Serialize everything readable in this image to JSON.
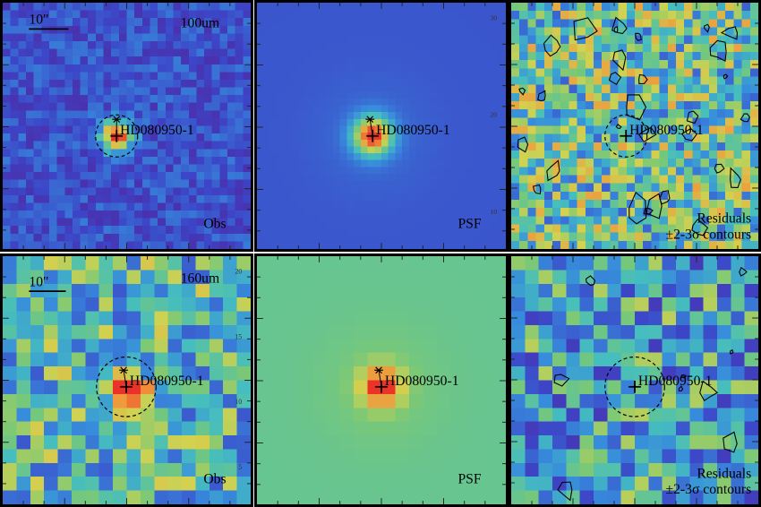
{
  "figure": {
    "panels": [
      {
        "id": "r1c1",
        "kind": "obs",
        "band": "100um",
        "source": "HD080950-1",
        "corner_label": "Obs",
        "scale_bar": "10\"",
        "ticks": []
      },
      {
        "id": "r1c2",
        "kind": "psf",
        "band": "",
        "source": "HD080950-1",
        "corner_label": "PSF",
        "scale_bar": "",
        "ticks": [
          "30",
          "20",
          "10"
        ]
      },
      {
        "id": "r1c3",
        "kind": "res",
        "band": "",
        "source": "HD080950-1",
        "corner_label": "Residuals",
        "corner_label2": "±2-3σ contours",
        "scale_bar": "",
        "ticks": []
      },
      {
        "id": "r2c1",
        "kind": "obs",
        "band": "160um",
        "source": "HD080950-1",
        "corner_label": "Obs",
        "scale_bar": "10\"",
        "ticks": [
          "20",
          "15",
          "10",
          "5"
        ]
      },
      {
        "id": "r2c2",
        "kind": "psf",
        "band": "",
        "source": "HD080950-1",
        "corner_label": "PSF",
        "scale_bar": "",
        "ticks": []
      },
      {
        "id": "r2c3",
        "kind": "res",
        "band": "",
        "source": "HD080950-1",
        "corner_label": "Residuals",
        "corner_label2": "±2-3σ contours",
        "scale_bar": "",
        "ticks": []
      }
    ],
    "colors": {
      "psf_background_100": "#3b5fbf",
      "psf_background_160": "#7fc47a",
      "peak": "#ee3322",
      "low": "#5b2aa0",
      "contour": "#000000"
    }
  }
}
